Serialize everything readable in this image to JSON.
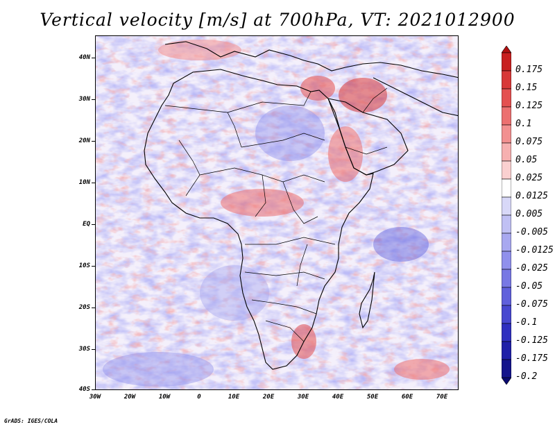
{
  "title": "Vertical velocity [m/s] at 700hPa, VT: 2021012900",
  "footer": "GrADS: IGES/COLA",
  "map": {
    "lon_range": [
      -30,
      75
    ],
    "lat_range": [
      -40,
      45
    ],
    "y_labels": [
      "40N",
      "30N",
      "20N",
      "10N",
      "EQ",
      "10S",
      "20S",
      "30S",
      "40S"
    ],
    "x_labels": [
      "30W",
      "20W",
      "10W",
      "0",
      "10E",
      "20E",
      "30E",
      "40E",
      "50E",
      "60E",
      "70E"
    ]
  },
  "colorbar": {
    "labels": [
      "0.175",
      "0.15",
      "0.125",
      "0.1",
      "0.075",
      "0.05",
      "0.025",
      "0.0125",
      "0.005",
      "-0.005",
      "-0.0125",
      "-0.025",
      "-0.05",
      "-0.075",
      "-0.1",
      "-0.125",
      "-0.175",
      "-0.2"
    ],
    "colors": [
      "#b01010",
      "#c82020",
      "#d83838",
      "#e45050",
      "#ec7070",
      "#f29090",
      "#f6b0b0",
      "#fad0d0",
      "#ffffff",
      "#d8d8f8",
      "#c0c0f4",
      "#a8a8f0",
      "#9090ec",
      "#7878e4",
      "#6060dc",
      "#4848d0",
      "#3030c0",
      "#2020a8",
      "#14148c",
      "#0a0a70"
    ]
  }
}
